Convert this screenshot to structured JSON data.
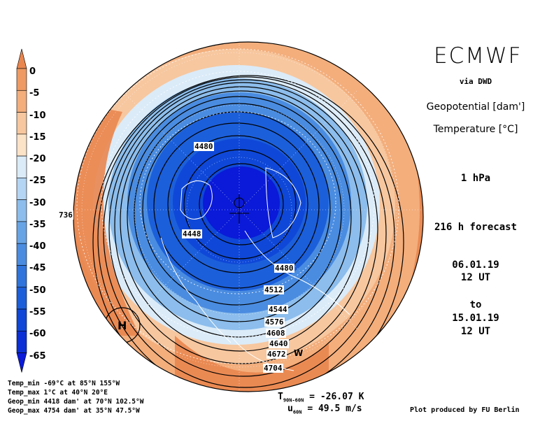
{
  "header": {
    "title": "ECMWF",
    "via": "via DWD",
    "field1": "Geopotential [dam']",
    "field2": "Temperature [°C]",
    "level": "1 hPa",
    "forecast": "216 h forecast",
    "init_date": "06.01.19",
    "init_time": "12 UT",
    "to": "to",
    "valid_date": "15.01.19",
    "valid_time": "12 UT"
  },
  "colorbar": {
    "labels": [
      "0",
      "-5",
      "-10",
      "-15",
      "-20",
      "-25",
      "-30",
      "-35",
      "-40",
      "-45",
      "-50",
      "-55",
      "-60",
      "-65"
    ],
    "colors": [
      "#e9864f",
      "#ef9a62",
      "#f3ae7c",
      "#f7c79f",
      "#fbe3c8",
      "#dbebf8",
      "#b4d5f3",
      "#8cbdec",
      "#67a4e5",
      "#4a8ce0",
      "#2f74dc",
      "#1c5fda",
      "#0f48d8",
      "#0a30d6",
      "#0a1ad8"
    ]
  },
  "stats": [
    "Temp_min -69°C at 85°N 155°W",
    "Temp_max 1°C at 40°N 20°E",
    "Geop_min 4418 dam' at 70°N 102.5°W",
    "Geop_max 4754 dam' at 35°N 47.5°W"
  ],
  "bottom": {
    "t_label": "T",
    "t_sub": "90N-60N",
    "t_value": "= -26.07 K",
    "u_label": "u",
    "u_sub": "60N",
    "u_value": "= 49.5 m/s",
    "credit": "Plot produced by FU Berlin"
  },
  "contour_labels": [
    "4480",
    "4448",
    "736",
    "4480",
    "4512",
    "4544",
    "4576",
    "4608",
    "4640",
    "4672",
    "4704"
  ],
  "high_marker": "H",
  "low_marker": "W"
}
